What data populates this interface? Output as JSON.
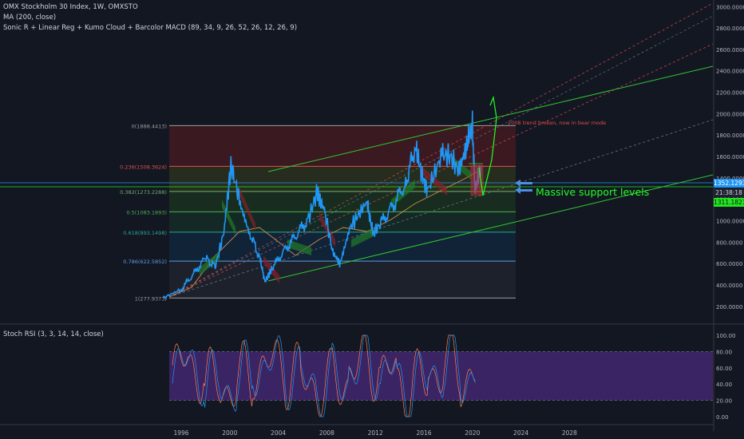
{
  "header": {
    "line1": "OMX Stockholm 30 Index, 1W, OMXSTO",
    "line2": "MA (200, close)",
    "line3": "Sonic R + Linear Reg + Kumo Cloud + Barcolor MACD (89, 34, 9, 26, 52, 26, 12, 26, 9)"
  },
  "stoch_label": "Stoch RSI (3, 3, 14, 14, close)",
  "price_axis": [
    "3000.0000",
    "2800.0000",
    "2600.0000",
    "2400.0000",
    "2200.0000",
    "2000.0000",
    "1800.0000",
    "1600.0000",
    "1400.0000",
    "1200.0000",
    "1000.0000",
    "800.0000",
    "600.0000",
    "400.0000",
    "200.0000"
  ],
  "stoch_axis": [
    "100.00",
    "80.00",
    "60.00",
    "40.00",
    "20.00",
    "0.00"
  ],
  "time_axis": [
    "1996",
    "2000",
    "2004",
    "2008",
    "2012",
    "2016",
    "2020",
    "2024",
    "2028"
  ],
  "price_tags": {
    "upper": "1352.1293",
    "timer": "21:38:18",
    "lower": "1311.1823"
  },
  "fib_levels": [
    {
      "label": "0(1888.4413)",
      "value": 1888.4413,
      "color": "#9e9e9e"
    },
    {
      "label": "0.236(1508.3624)",
      "value": 1508.3624,
      "color": "#e0504f"
    },
    {
      "label": "0.382(1273.2288)",
      "value": 1273.2288,
      "color": "#6fb26f"
    },
    {
      "label": "0.5(1083.1893)",
      "value": 1083.1893,
      "color": "#4caf50"
    },
    {
      "label": "0.618(893.1498)",
      "value": 893.1498,
      "color": "#26a69a"
    },
    {
      "label": "0.786(622.5852)",
      "value": 622.5852,
      "color": "#5a9de0"
    },
    {
      "label": "1(277.9373)",
      "value": 277.9373,
      "color": "#9e9e9e"
    }
  ],
  "annotations": {
    "support": "Massive support levels",
    "trend": "2008 trend broken, now in bear mode"
  },
  "colors": {
    "background": "#131722",
    "price_line": "#2196f3",
    "ma": "#d08a4f",
    "channel": "#32c832",
    "stoch_k": "#2196f3",
    "stoch_d": "#ff7f4f",
    "stoch_band": "#4a2a7a"
  },
  "chart_data": [
    {
      "type": "line",
      "title": "OMX Stockholm 30 Index, 1W, OMXSTO",
      "ylim": [
        100,
        3100
      ],
      "x": [
        1994.5,
        1996,
        1997,
        1998,
        1998.8,
        1999.5,
        2000.1,
        2000.8,
        2001.7,
        2002.5,
        2002.9,
        2003.5,
        2004.5,
        2005.5,
        2006.5,
        2007.2,
        2007.8,
        2008.5,
        2009.1,
        2010,
        2011.3,
        2011.8,
        2012.5,
        2013.5,
        2014.5,
        2015.3,
        2015.8,
        2016.3,
        2017.5,
        2018.2,
        2018.9,
        2019.5,
        2020.0,
        2020.2,
        2020.7
      ],
      "series": [
        {
          "values": [
            278,
            360,
            500,
            650,
            570,
            880,
            1520,
            1200,
            880,
            640,
            430,
            560,
            720,
            870,
            1020,
            1270,
            1100,
            700,
            600,
            950,
            1180,
            880,
            980,
            1150,
            1350,
            1700,
            1440,
            1280,
            1620,
            1600,
            1460,
            1700,
            1900,
            1290,
            1500
          ]
        }
      ]
    },
    {
      "type": "line",
      "title": "Stoch RSI (3, 3, 14, 14, close)",
      "ylim": [
        0,
        100
      ],
      "series": [
        {
          "values": [
            92,
            80,
            20,
            5,
            40,
            90,
            95,
            70,
            15,
            5,
            30,
            85,
            98,
            60,
            10,
            20,
            75,
            95,
            50,
            5
          ]
        }
      ]
    }
  ]
}
